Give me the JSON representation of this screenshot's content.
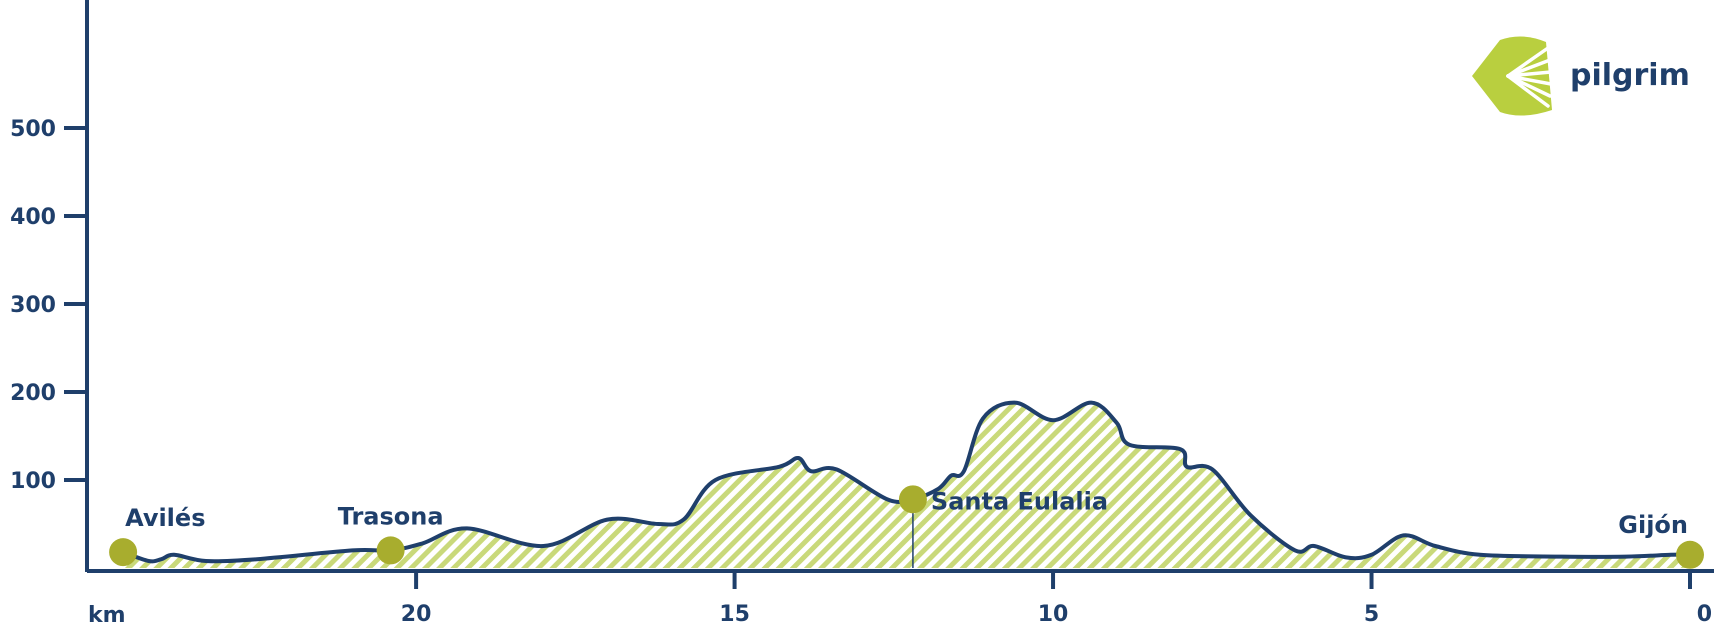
{
  "colors": {
    "line": "#1f3f6b",
    "fill": "#c9d97a",
    "marker": "#a8ad2e",
    "logo": "#b9cf3f",
    "text": "#1f3f6b"
  },
  "logo": {
    "text": "pilgrim",
    "icon": "scallop-shell-icon"
  },
  "chart_data": {
    "type": "area",
    "title": "",
    "xlabel": "km",
    "ylabel": "",
    "x_reversed": true,
    "xlim": [
      24.9,
      0
    ],
    "ylim": [
      0,
      650
    ],
    "xticks": [
      20,
      15,
      10,
      5,
      0
    ],
    "yticks": [
      100,
      200,
      300,
      400,
      500
    ],
    "grid": false,
    "series": [
      {
        "points": [
          [
            24.6,
            18
          ],
          [
            24.2,
            8
          ],
          [
            24.0,
            10
          ],
          [
            23.8,
            15
          ],
          [
            23.3,
            8
          ],
          [
            22.5,
            10
          ],
          [
            21.0,
            20
          ],
          [
            20.4,
            20
          ],
          [
            19.9,
            28
          ],
          [
            19.2,
            45
          ],
          [
            18.0,
            25
          ],
          [
            17.0,
            55
          ],
          [
            16.2,
            50
          ],
          [
            15.8,
            55
          ],
          [
            15.3,
            100
          ],
          [
            14.3,
            115
          ],
          [
            14.0,
            125
          ],
          [
            13.8,
            110
          ],
          [
            13.4,
            112
          ],
          [
            12.6,
            78
          ],
          [
            12.2,
            78
          ],
          [
            11.8,
            90
          ],
          [
            11.6,
            105
          ],
          [
            11.4,
            110
          ],
          [
            11.1,
            170
          ],
          [
            10.6,
            188
          ],
          [
            10.0,
            168
          ],
          [
            9.4,
            188
          ],
          [
            9.0,
            165
          ],
          [
            8.8,
            140
          ],
          [
            8.0,
            135
          ],
          [
            7.9,
            115
          ],
          [
            7.5,
            112
          ],
          [
            6.9,
            60
          ],
          [
            6.2,
            20
          ],
          [
            5.9,
            25
          ],
          [
            5.4,
            12
          ],
          [
            5.0,
            15
          ],
          [
            4.5,
            37
          ],
          [
            4.0,
            25
          ],
          [
            3.3,
            15
          ],
          [
            2.0,
            13
          ],
          [
            1.0,
            13
          ],
          [
            0.3,
            15
          ],
          [
            0.0,
            15
          ]
        ]
      }
    ],
    "waypoints": [
      {
        "name": "Avilés",
        "km": 24.6,
        "elevation": 18
      },
      {
        "name": "Trasona",
        "km": 20.4,
        "elevation": 20
      },
      {
        "name": "Santa Eulalia",
        "km": 12.2,
        "elevation": 78
      },
      {
        "name": "Gijón",
        "km": 0.0,
        "elevation": 15
      }
    ]
  }
}
